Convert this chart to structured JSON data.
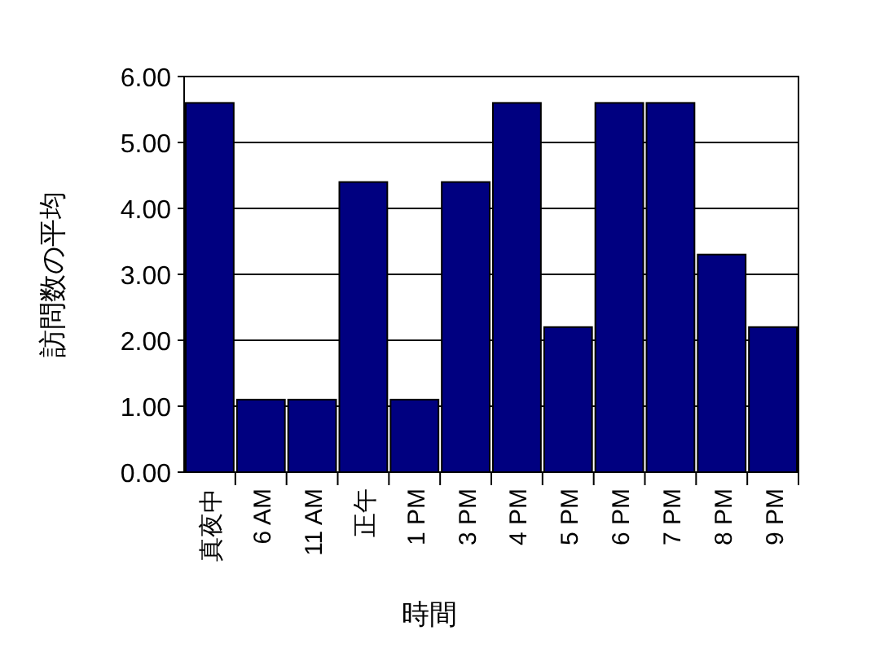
{
  "chart_data": {
    "type": "bar",
    "xlabel": "時間",
    "ylabel": "訪問数の平均",
    "categories": [
      "真夜中",
      "6 AM",
      "11 AM",
      "正午",
      "1 PM",
      "3 PM",
      "4 PM",
      "5 PM",
      "6 PM",
      "7 PM",
      "8 PM",
      "9 PM"
    ],
    "values": [
      5.6,
      1.1,
      1.1,
      4.4,
      1.1,
      4.4,
      5.6,
      2.2,
      5.6,
      5.6,
      3.3,
      2.2
    ],
    "color": "#000080",
    "ylim": [
      0,
      6
    ],
    "yticks": [
      {
        "value": 0,
        "label": "0.00"
      },
      {
        "value": 1,
        "label": "1.00"
      },
      {
        "value": 2,
        "label": "2.00"
      },
      {
        "value": 3,
        "label": "3.00"
      },
      {
        "value": 4,
        "label": "4.00"
      },
      {
        "value": 5,
        "label": "5.00"
      },
      {
        "value": 6,
        "label": "6.00"
      }
    ],
    "grid": "y"
  }
}
